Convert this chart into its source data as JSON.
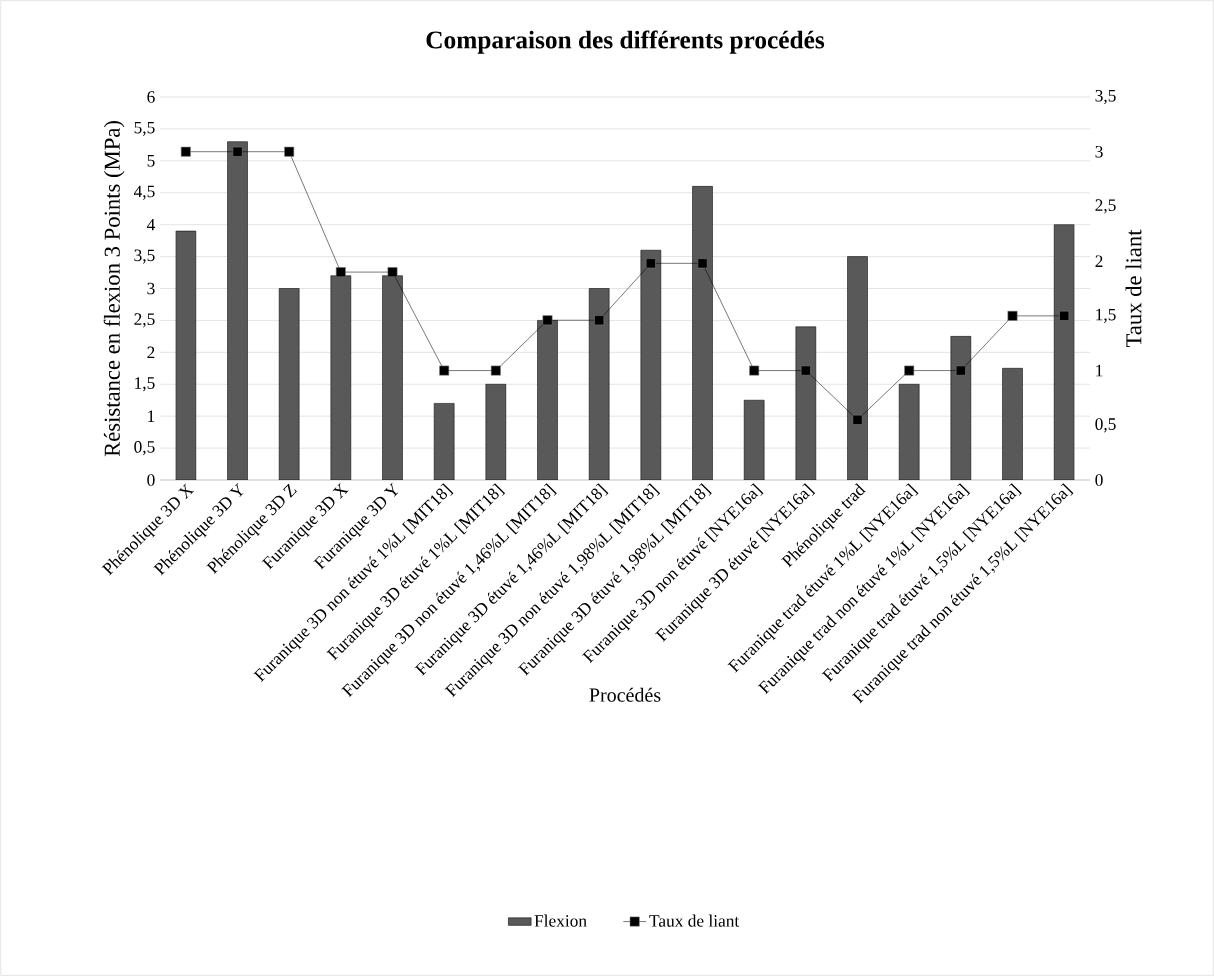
{
  "chart_data": {
    "type": "bar",
    "title": "Comparaison des différents procédés",
    "xlabel": "Procédés",
    "ylabel": "Résistance en flexion 3 Points (MPa)",
    "y2label": "Taux de liant",
    "categories": [
      "Phénolique 3D X",
      "Phénolique 3D Y",
      "Phénolique 3D Z",
      "Furanique 3D X",
      "Furanique 3D Y",
      "Furanique 3D non étuvé 1%L [MIT18]",
      "Furanique 3D étuvé 1%L [MIT18]",
      "Furanique 3D non étuvé 1,46%L [MIT18]",
      "Furanique 3D étuvé 1,46%L [MIT18]",
      "Furanique 3D non étuvé 1,98%L [MIT18]",
      "Furanique 3D étuvé 1,98%L [MIT18]",
      "Furanique 3D non étuvé [NYE16a]",
      "Furanique 3D étuvé [NYE16a]",
      "Phénolique trad",
      "Furanique trad étuvé 1%L [NYE16a]",
      "Furanique trad non étuvé 1%L [NYE16a]",
      "Furanique trad étuvé 1,5%L [NYE16a]",
      "Furanique trad non étuvé 1,5%L [NYE16a]"
    ],
    "series": [
      {
        "name": "Flexion",
        "type": "bar",
        "color": "#595959",
        "values": [
          3.9,
          5.3,
          3.0,
          3.2,
          3.2,
          1.2,
          1.5,
          2.5,
          3.0,
          3.6,
          4.6,
          1.25,
          2.4,
          3.5,
          1.5,
          2.25,
          1.75,
          4.0
        ]
      },
      {
        "name": "Taux de liant",
        "type": "line",
        "axis": "y2",
        "color": "#000000",
        "marker": "square",
        "values": [
          3,
          3,
          3,
          1.9,
          1.9,
          1,
          1,
          1.46,
          1.46,
          1.98,
          1.98,
          1,
          1,
          0.55,
          1,
          1,
          1.5,
          1.5
        ]
      }
    ],
    "ylim": [
      0,
      6
    ],
    "yticks": [
      0,
      {
        "value": 0.5,
        "label": "0,5"
      },
      1,
      {
        "value": 1.5,
        "label": "1,5"
      },
      2,
      {
        "value": 2.5,
        "label": "2,5"
      },
      3,
      {
        "value": 3.5,
        "label": "3,5"
      },
      4,
      {
        "value": 4.5,
        "label": "4,5"
      },
      5,
      {
        "value": 5.5,
        "label": "5,5"
      },
      6
    ],
    "y2lim": [
      0,
      3.5
    ],
    "y2ticks": [
      0,
      {
        "value": 0.5,
        "label": "0,5"
      },
      1,
      {
        "value": 1.5,
        "label": "1,5"
      },
      2,
      {
        "value": 2.5,
        "label": "2,5"
      },
      3,
      {
        "value": 3.5,
        "label": "3,5"
      }
    ],
    "grid": "y",
    "legend": "bottom"
  }
}
